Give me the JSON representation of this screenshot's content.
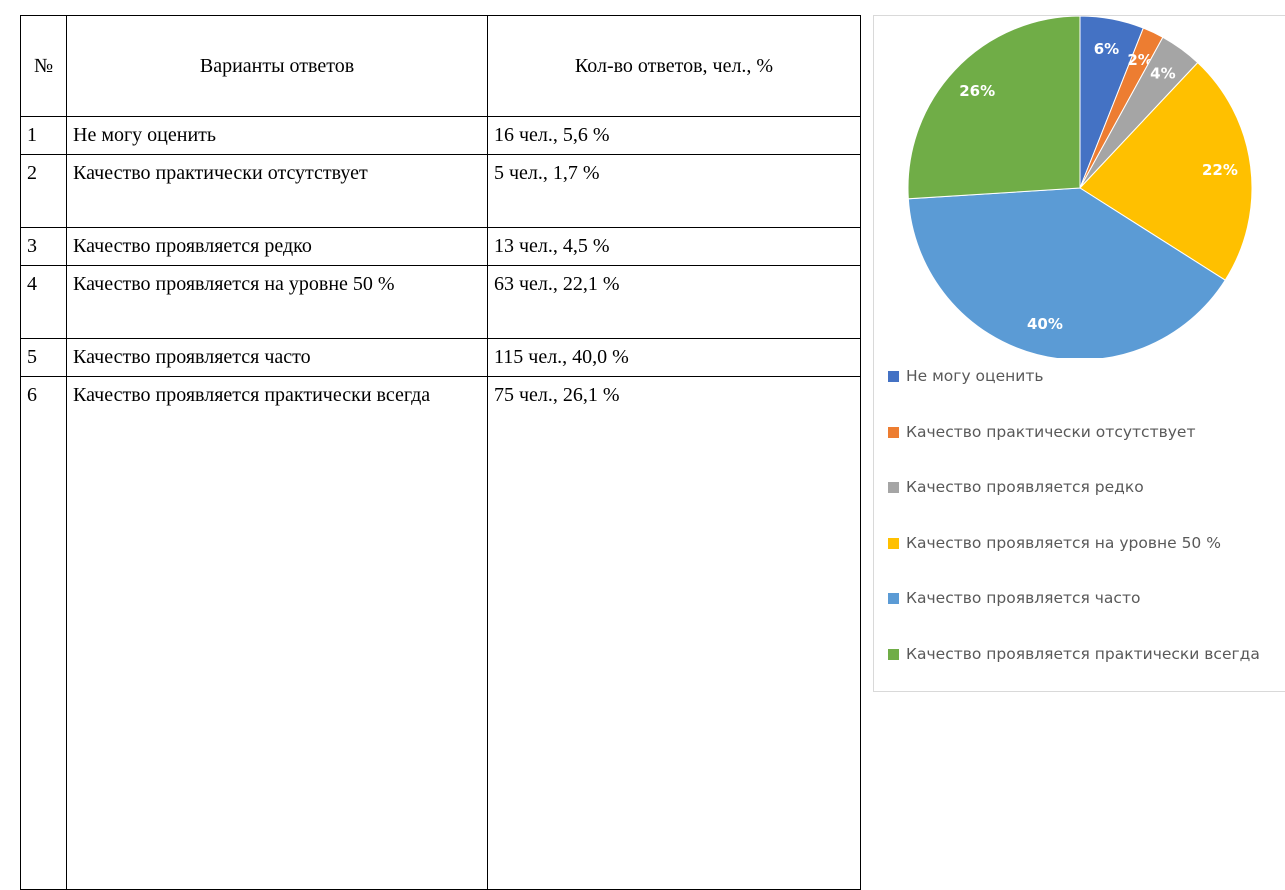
{
  "table": {
    "header": [
      "№",
      "Варианты ответов",
      "Кол-во ответов, чел., %"
    ],
    "rows": [
      [
        "1",
        "Не могу оценить",
        "16 чел., 5,6 %"
      ],
      [
        "2",
        "Качество практически отсутствует",
        "5 чел., 1,7 %"
      ],
      [
        "3",
        "Качество проявляется редко",
        "13 чел., 4,5 %"
      ],
      [
        "4",
        "Качество проявляется на уровне 50 %",
        "63 чел., 22,1 %"
      ],
      [
        "5",
        "Качество проявляется часто",
        "115 чел., 40,0 %"
      ],
      [
        "6",
        "Качество проявляется практически всегда",
        "75 чел., 26,1 %"
      ]
    ]
  },
  "chart_data": {
    "type": "pie",
    "categories": [
      "Не могу оценить",
      "Качество практически отсутствует",
      "Качество проявляется редко",
      "Качество проявляется на уровне 50 %",
      "Качество проявляется часто",
      "Качество проявляется практически всегда"
    ],
    "values": [
      6,
      2,
      4,
      22,
      40,
      26
    ],
    "value_labels": [
      "6%",
      "2%",
      "4%",
      "22%",
      "40%",
      "26%"
    ],
    "colors": [
      "#4472c4",
      "#ed7d31",
      "#a5a5a5",
      "#ffc000",
      "#5b9bd5",
      "#70ad47"
    ],
    "legend": "bottom"
  }
}
